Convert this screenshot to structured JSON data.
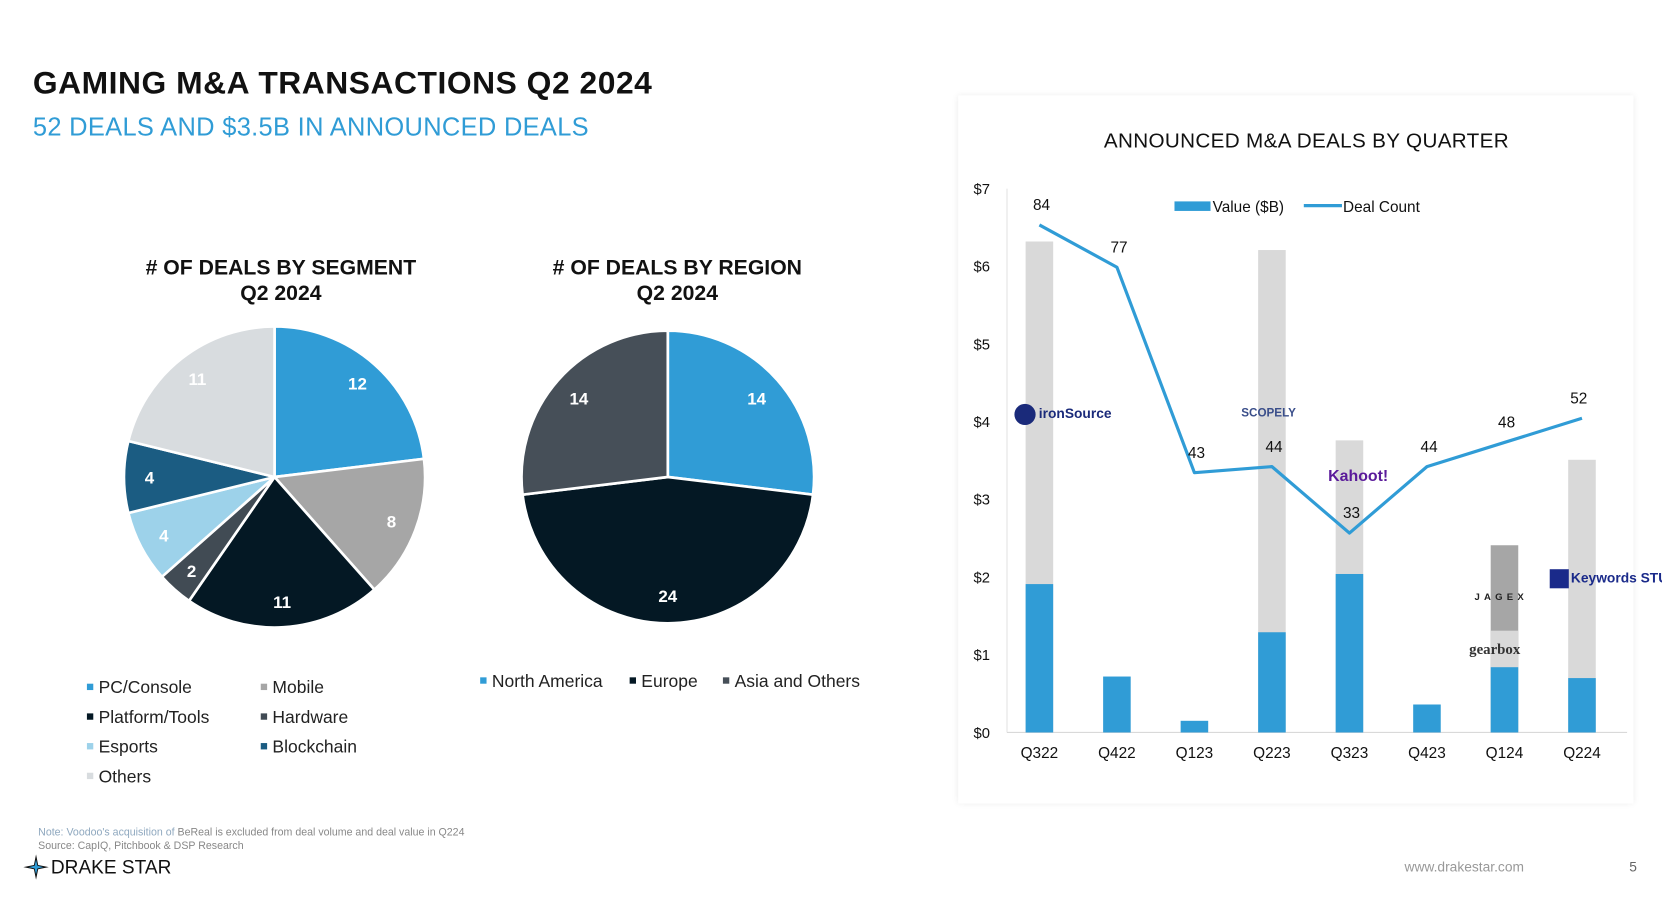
{
  "header": {
    "title": "GAMING M&A TRANSACTIONS Q2 2024",
    "subtitle": "52 DEALS AND $3.5B IN ANNOUNCED DEALS"
  },
  "chart_data": [
    {
      "type": "pie",
      "title": "# OF DEALS BY SEGMENT",
      "subtitle": "Q2 2024",
      "labels": [
        "PC/Console",
        "Mobile",
        "Platform/Tools",
        "Hardware",
        "Esports",
        "Blockchain",
        "Others"
      ],
      "values": [
        12,
        8,
        11,
        2,
        4,
        4,
        11
      ],
      "colors": [
        "#309cd6",
        "#a6a6a6",
        "#041824",
        "#414b54",
        "#9dd2ea",
        "#1b5c82",
        "#d8dcdf"
      ],
      "label_colors": [
        "#ffffff",
        "#ffffff",
        "#ffffff",
        "#ffffff",
        "#ffffff",
        "#ffffff",
        "#ffffff"
      ],
      "legend": "bottom"
    },
    {
      "type": "pie",
      "title": "# OF DEALS BY REGION",
      "subtitle": "Q2 2024",
      "labels": [
        "North America",
        "Europe",
        "Asia and Others"
      ],
      "values": [
        14,
        24,
        14
      ],
      "colors": [
        "#309cd6",
        "#041824",
        "#464f58"
      ],
      "legend": "bottom"
    },
    {
      "type": "bar+line",
      "title": "ANNOUNCED M&A DEALS BY QUARTER",
      "categories": [
        "Q322",
        "Q422",
        "Q123",
        "Q223",
        "Q323",
        "Q423",
        "Q124",
        "Q224"
      ],
      "yticks": [
        "$0",
        "$1",
        "$2",
        "$3",
        "$4",
        "$5",
        "$6",
        "$7"
      ],
      "ylim": [
        0,
        7
      ],
      "series": [
        {
          "name": "Value ($B)",
          "type": "bar",
          "color": "#309cd6",
          "values": [
            1.91,
            0.72,
            0.15,
            1.29,
            2.04,
            0.36,
            0.84,
            0.7
          ]
        },
        {
          "name": "Deal Count",
          "type": "line",
          "color": "#309cd6",
          "axis": "secondary",
          "ylim": [
            0,
            90
          ],
          "values": [
            84,
            77,
            43,
            44,
            33,
            44,
            48,
            52
          ]
        }
      ],
      "highlight_bars": [
        {
          "category": "Q322",
          "total": 6.32,
          "color": "#d9d9d9",
          "logo": "ironSource"
        },
        {
          "category": "Q223",
          "total": 6.21,
          "color": "#d9d9d9",
          "logo": "SCOPELY"
        },
        {
          "category": "Q323",
          "total": 3.76,
          "color": "#d9d9d9",
          "logo": "Kahoot!"
        },
        {
          "category": "Q124",
          "total": 1.31,
          "color": "#d9d9d9",
          "logo": "gearbox"
        },
        {
          "category": "Q124",
          "total": 2.41,
          "color": "#a6a6a6",
          "logo": "JAGEX"
        },
        {
          "category": "Q224",
          "total": 3.51,
          "color": "#d9d9d9",
          "logo": "Keywords STUDIOS"
        }
      ],
      "legend": "top"
    }
  ],
  "footer": {
    "note_prefix": "Note: Voodoo's acquisition of ",
    "note_rest": "BeReal is excluded from deal volume and deal value in Q224",
    "source": "Source: CapIQ, Pitchbook & DSP Research",
    "brand": "DRAKE STAR",
    "url": "www.drakestar.com",
    "page": "5"
  }
}
